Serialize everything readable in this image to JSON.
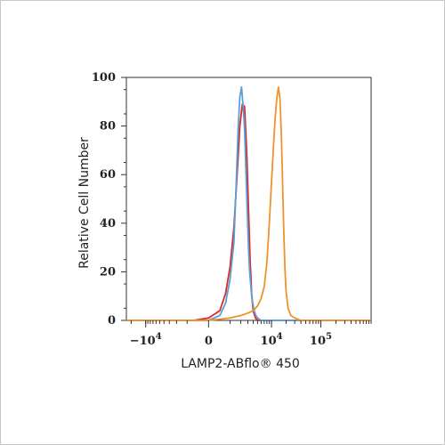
{
  "chart_data": {
    "type": "line",
    "title": "",
    "xlabel": "LAMP2-ABflo® 450",
    "ylabel": "Relative Cell Number",
    "x_scale": "biexponential",
    "xlim": [
      -25000,
      1000000
    ],
    "ylim": [
      0,
      100
    ],
    "y_ticks": [
      0,
      20,
      40,
      60,
      80,
      100
    ],
    "x_ticks": [
      {
        "value": -10000,
        "label": "−10",
        "exp": "4"
      },
      {
        "value": 0,
        "label": "0",
        "exp": ""
      },
      {
        "value": 10000,
        "label": "10",
        "exp": "4"
      },
      {
        "value": 100000,
        "label": "10",
        "exp": "5"
      }
    ],
    "grid": false,
    "legend": "none",
    "series": [
      {
        "color": "#d62b2b",
        "x": [
          -25000,
          -10000,
          -3000,
          -600,
          0,
          400,
          700,
          1000,
          1300,
          1600,
          1900,
          2200,
          2500,
          2800,
          3100,
          3400,
          3700,
          4000,
          4500,
          5000,
          6000,
          8000,
          15000,
          100000,
          1000000
        ],
        "y": [
          0,
          0,
          0,
          0,
          1,
          4,
          11,
          22,
          38,
          60,
          80,
          89,
          88,
          70,
          46,
          24,
          10,
          4,
          1,
          0,
          0,
          0,
          0,
          0,
          0
        ]
      },
      {
        "color": "#5b9fd6",
        "x": [
          -25000,
          -10000,
          -3000,
          -600,
          0,
          400,
          700,
          1000,
          1300,
          1500,
          1700,
          1900,
          2100,
          2300,
          2500,
          2700,
          2900,
          3100,
          3300,
          3600,
          3900,
          4200,
          4600,
          5000,
          6000,
          8000,
          15000,
          100000,
          1000000
        ],
        "y": [
          0,
          0,
          0,
          0,
          0,
          2,
          7,
          17,
          32,
          54,
          78,
          92,
          96,
          88,
          79,
          62,
          45,
          30,
          20,
          12,
          7,
          4,
          2,
          1,
          0,
          0,
          0,
          0,
          0
        ]
      },
      {
        "color": "#f0922b",
        "x": [
          -25000,
          -10000,
          -3000,
          -600,
          0,
          1000,
          2000,
          3000,
          4000,
          5000,
          6000,
          7000,
          8000,
          9000,
          10000,
          11000,
          12000,
          13000,
          14000,
          15000,
          16000,
          17000,
          18000,
          19000,
          20000,
          22000,
          25000,
          30000,
          40000,
          60000,
          100000,
          1000000
        ],
        "y": [
          0,
          0,
          0,
          0,
          0,
          1,
          2,
          3,
          4,
          6,
          9,
          14,
          24,
          40,
          57,
          72,
          84,
          92,
          96,
          91,
          77,
          57,
          36,
          21,
          12,
          5,
          2,
          1,
          0,
          0,
          0,
          0
        ]
      }
    ]
  }
}
